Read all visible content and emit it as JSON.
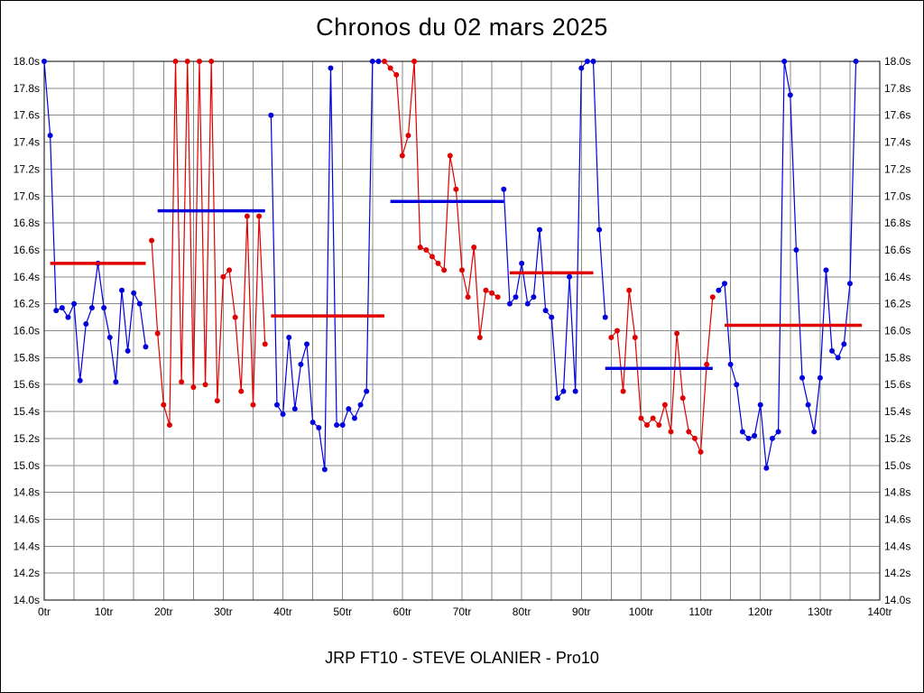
{
  "window": {
    "background": "#ffffff",
    "border_color": "#000000"
  },
  "chart_data": {
    "type": "line",
    "title": "Chronos du 02 mars 2025",
    "caption": "JRP FT10 - STEVE OLANIER - Pro10",
    "x_unit": "tr",
    "y_unit": "s",
    "xlim": [
      0,
      140
    ],
    "ylim": [
      14.0,
      18.0
    ],
    "x_tick_step": 10,
    "y_tick_step": 0.2,
    "x_grid_step": 5,
    "grid": true,
    "legend": "none",
    "x_tick_labels": [
      "0tr",
      "10tr",
      "20tr",
      "30tr",
      "40tr",
      "50tr",
      "60tr",
      "70tr",
      "80tr",
      "90tr",
      "100tr",
      "110tr",
      "120tr",
      "130tr",
      "140tr"
    ],
    "y_tick_labels": [
      "14.0s",
      "14.2s",
      "14.4s",
      "14.6s",
      "14.8s",
      "15.0s",
      "15.2s",
      "15.4s",
      "15.6s",
      "15.8s",
      "16.0s",
      "16.2s",
      "16.4s",
      "16.6s",
      "16.8s",
      "17.0s",
      "17.2s",
      "17.4s",
      "17.6s",
      "17.8s",
      "18.0s"
    ],
    "colors": {
      "blue": "#0000dd",
      "red": "#e00000",
      "grid": "#8a8a8a",
      "axis": "#000000",
      "background": "#ffffff"
    },
    "segments": [
      {
        "name": "run-1",
        "color": "blue",
        "start_lap": 0,
        "values": [
          18.0,
          17.45,
          16.15,
          16.17,
          16.1,
          16.2,
          15.63,
          16.05,
          16.17,
          16.5,
          16.17,
          15.95,
          15.62,
          16.3,
          15.85,
          16.28,
          16.2,
          15.88
        ]
      },
      {
        "name": "run-2",
        "color": "red",
        "start_lap": 18,
        "values": [
          16.67,
          15.98,
          15.45,
          15.3,
          18.0,
          15.62,
          18.0,
          15.58,
          18.0,
          15.6,
          18.0,
          15.48,
          16.4,
          16.45,
          16.1,
          15.55,
          16.85,
          15.45,
          16.85,
          15.9
        ]
      },
      {
        "name": "run-3",
        "color": "blue",
        "start_lap": 38,
        "values": [
          17.6,
          15.45,
          15.38,
          15.95,
          15.42,
          15.75,
          15.9,
          15.32,
          15.28,
          14.97,
          17.95,
          15.3,
          15.3,
          15.42,
          15.35,
          15.45,
          15.55,
          18.0,
          18.0
        ]
      },
      {
        "name": "run-4",
        "color": "red",
        "start_lap": 57,
        "values": [
          18.0,
          17.95,
          17.9,
          17.3,
          17.45,
          18.0,
          16.62,
          16.6,
          16.55,
          16.5,
          16.45,
          17.3,
          17.05,
          16.45,
          16.25,
          16.62,
          15.95,
          16.3,
          16.28,
          16.25
        ]
      },
      {
        "name": "run-5",
        "color": "blue",
        "start_lap": 77,
        "values": [
          17.05,
          16.2,
          16.25,
          16.5,
          16.2,
          16.25,
          16.75,
          16.15,
          16.1,
          15.5,
          15.55,
          16.4,
          15.55,
          17.95,
          18.0,
          18.0,
          16.75,
          16.1
        ]
      },
      {
        "name": "run-6",
        "color": "red",
        "start_lap": 95,
        "values": [
          15.95,
          16.0,
          15.55,
          16.3,
          15.95,
          15.35,
          15.3,
          15.35,
          15.3,
          15.45,
          15.25,
          15.98,
          15.5,
          15.25,
          15.2,
          15.1,
          15.75,
          16.25
        ]
      },
      {
        "name": "run-7",
        "color": "blue",
        "start_lap": 113,
        "values": [
          16.3,
          16.35,
          15.75,
          15.6,
          15.25,
          15.2,
          15.22,
          15.45,
          14.98,
          15.2,
          15.25,
          18.0,
          17.75,
          16.6,
          15.65,
          15.45,
          15.25,
          15.65,
          16.45,
          15.85,
          15.8,
          15.9,
          16.35,
          18.0
        ]
      }
    ],
    "average_lines": [
      {
        "color": "red",
        "value": 16.5,
        "from_lap": 1,
        "to_lap": 17
      },
      {
        "color": "blue",
        "value": 16.89,
        "from_lap": 19,
        "to_lap": 37
      },
      {
        "color": "red",
        "value": 16.11,
        "from_lap": 38,
        "to_lap": 57
      },
      {
        "color": "blue",
        "value": 16.96,
        "from_lap": 58,
        "to_lap": 77
      },
      {
        "color": "red",
        "value": 16.43,
        "from_lap": 78,
        "to_lap": 92
      },
      {
        "color": "blue",
        "value": 15.72,
        "from_lap": 94,
        "to_lap": 112
      },
      {
        "color": "red",
        "value": 16.04,
        "from_lap": 114,
        "to_lap": 137
      }
    ]
  }
}
